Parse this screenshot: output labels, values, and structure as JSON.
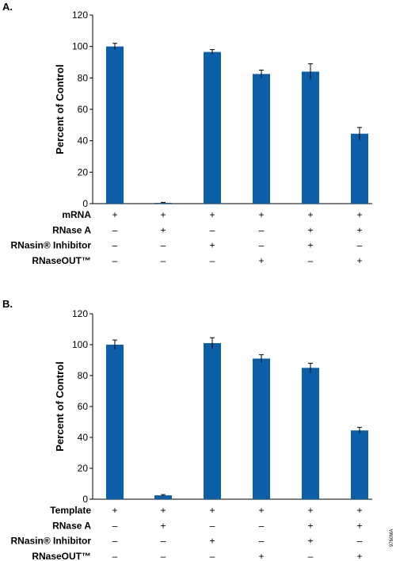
{
  "colors": {
    "bar": "#0b5fa8",
    "axis": "#000000"
  },
  "figure_code": "9760MA",
  "chart_data": [
    {
      "panel": "A.",
      "type": "bar",
      "ylabel": "Percent of Control",
      "ylim": [
        0,
        120
      ],
      "yticks": [
        0,
        20,
        40,
        60,
        80,
        100,
        120
      ],
      "values": [
        100,
        0.5,
        96.5,
        82.5,
        84,
        44.5
      ],
      "errors": [
        2,
        0.3,
        1.5,
        2.5,
        5,
        4
      ],
      "conditions": [
        {
          "label": "mRNA",
          "signs": [
            "+",
            "+",
            "+",
            "+",
            "+",
            "+"
          ]
        },
        {
          "label": "RNase A",
          "signs": [
            "–",
            "+",
            "–",
            "–",
            "+",
            "+"
          ]
        },
        {
          "label": "RNasin® Inhibitor",
          "signs": [
            "–",
            "–",
            "+",
            "–",
            "+",
            "–"
          ]
        },
        {
          "label": "RNaseOUT™",
          "signs": [
            "–",
            "–",
            "–",
            "+",
            "–",
            "+"
          ]
        }
      ]
    },
    {
      "panel": "B.",
      "type": "bar",
      "ylabel": "Percent of Control",
      "ylim": [
        0,
        120
      ],
      "yticks": [
        0,
        20,
        40,
        60,
        80,
        100,
        120
      ],
      "values": [
        100,
        2.5,
        101,
        91,
        85,
        44.5
      ],
      "errors": [
        3,
        0.5,
        3.5,
        2.5,
        3,
        2
      ],
      "conditions": [
        {
          "label": "Template",
          "signs": [
            "+",
            "+",
            "+",
            "+",
            "+",
            "+"
          ]
        },
        {
          "label": "RNase A",
          "signs": [
            "–",
            "+",
            "–",
            "–",
            "+",
            "+"
          ]
        },
        {
          "label": "RNasin® Inhibitor",
          "signs": [
            "–",
            "–",
            "+",
            "–",
            "+",
            "–"
          ]
        },
        {
          "label": "RNaseOUT™",
          "signs": [
            "–",
            "–",
            "–",
            "+",
            "–",
            "+"
          ]
        }
      ]
    }
  ]
}
